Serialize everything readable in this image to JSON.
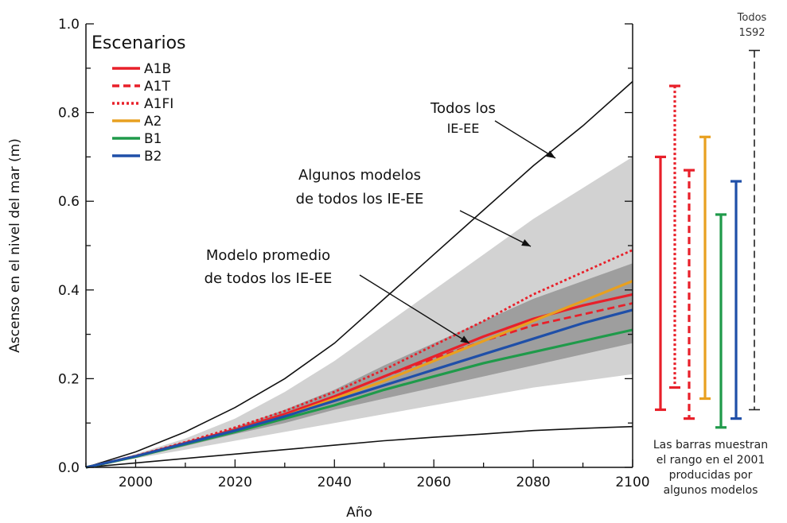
{
  "chart_data": {
    "type": "line",
    "xlabel": "Año",
    "ylabel": "Ascenso en el nivel del mar (m)",
    "xlim": [
      1990,
      2100
    ],
    "ylim": [
      0,
      1.0
    ],
    "xticks": [
      "2000",
      "2020",
      "2040",
      "2060",
      "2080",
      "2100"
    ],
    "yticks": [
      "0.0",
      "0.2",
      "0.4",
      "0.6",
      "0.8",
      "1.0"
    ],
    "legend": {
      "title": "Escenarios",
      "placement": "top-left",
      "entries": [
        {
          "name": "A1B",
          "color": "#e8202a",
          "dash": "solid"
        },
        {
          "name": "A1T",
          "color": "#e8202a",
          "dash": "dashed"
        },
        {
          "name": "A1FI",
          "color": "#e8202a",
          "dash": "dotted"
        },
        {
          "name": "A2",
          "color": "#e8a020",
          "dash": "solid"
        },
        {
          "name": "B1",
          "color": "#1f9a4a",
          "dash": "solid"
        },
        {
          "name": "B2",
          "color": "#1f4fa8",
          "dash": "solid"
        }
      ]
    },
    "envelopes": {
      "all_models_upper": [
        [
          1990,
          0
        ],
        [
          2000,
          0.035
        ],
        [
          2010,
          0.08
        ],
        [
          2020,
          0.135
        ],
        [
          2030,
          0.2
        ],
        [
          2040,
          0.28
        ],
        [
          2050,
          0.38
        ],
        [
          2060,
          0.48
        ],
        [
          2070,
          0.58
        ],
        [
          2080,
          0.68
        ],
        [
          2090,
          0.77
        ],
        [
          2100,
          0.87
        ]
      ],
      "all_models_lower": [
        [
          1990,
          0
        ],
        [
          2000,
          0.01
        ],
        [
          2010,
          0.02
        ],
        [
          2020,
          0.03
        ],
        [
          2030,
          0.04
        ],
        [
          2040,
          0.05
        ],
        [
          2050,
          0.06
        ],
        [
          2060,
          0.068
        ],
        [
          2070,
          0.075
        ],
        [
          2080,
          0.083
        ],
        [
          2090,
          0.088
        ],
        [
          2100,
          0.092
        ]
      ],
      "some_models_upper": [
        [
          1990,
          0
        ],
        [
          2000,
          0.03
        ],
        [
          2010,
          0.065
        ],
        [
          2020,
          0.11
        ],
        [
          2030,
          0.17
        ],
        [
          2040,
          0.24
        ],
        [
          2050,
          0.32
        ],
        [
          2060,
          0.4
        ],
        [
          2070,
          0.48
        ],
        [
          2080,
          0.56
        ],
        [
          2090,
          0.63
        ],
        [
          2100,
          0.7
        ]
      ],
      "some_models_lower": [
        [
          1990,
          0
        ],
        [
          2000,
          0.02
        ],
        [
          2010,
          0.04
        ],
        [
          2020,
          0.06
        ],
        [
          2030,
          0.08
        ],
        [
          2040,
          0.1
        ],
        [
          2050,
          0.12
        ],
        [
          2060,
          0.14
        ],
        [
          2070,
          0.16
        ],
        [
          2080,
          0.18
        ],
        [
          2090,
          0.195
        ],
        [
          2100,
          0.21
        ]
      ],
      "mean_models_upper": [
        [
          1990,
          0
        ],
        [
          2000,
          0.025
        ],
        [
          2010,
          0.055
        ],
        [
          2020,
          0.09
        ],
        [
          2030,
          0.13
        ],
        [
          2040,
          0.175
        ],
        [
          2050,
          0.23
        ],
        [
          2060,
          0.28
        ],
        [
          2070,
          0.33
        ],
        [
          2080,
          0.38
        ],
        [
          2090,
          0.42
        ],
        [
          2100,
          0.46
        ]
      ],
      "mean_models_lower": [
        [
          1990,
          0
        ],
        [
          2000,
          0.022
        ],
        [
          2010,
          0.048
        ],
        [
          2020,
          0.075
        ],
        [
          2030,
          0.1
        ],
        [
          2040,
          0.13
        ],
        [
          2050,
          0.155
        ],
        [
          2060,
          0.18
        ],
        [
          2070,
          0.205
        ],
        [
          2080,
          0.23
        ],
        [
          2090,
          0.255
        ],
        [
          2100,
          0.28
        ]
      ]
    },
    "series": [
      {
        "name": "A1B",
        "color": "#e8202a",
        "dash": "solid",
        "points": [
          [
            1990,
            0
          ],
          [
            2000,
            0.025
          ],
          [
            2010,
            0.055
          ],
          [
            2020,
            0.085
          ],
          [
            2030,
            0.12
          ],
          [
            2040,
            0.16
          ],
          [
            2050,
            0.205
          ],
          [
            2060,
            0.25
          ],
          [
            2070,
            0.295
          ],
          [
            2080,
            0.335
          ],
          [
            2090,
            0.365
          ],
          [
            2100,
            0.39
          ]
        ]
      },
      {
        "name": "A1T",
        "color": "#e8202a",
        "dash": "dashed",
        "points": [
          [
            1990,
            0
          ],
          [
            2000,
            0.025
          ],
          [
            2010,
            0.055
          ],
          [
            2020,
            0.085
          ],
          [
            2030,
            0.12
          ],
          [
            2040,
            0.16
          ],
          [
            2050,
            0.205
          ],
          [
            2060,
            0.245
          ],
          [
            2070,
            0.285
          ],
          [
            2080,
            0.32
          ],
          [
            2090,
            0.345
          ],
          [
            2100,
            0.37
          ]
        ]
      },
      {
        "name": "A1FI",
        "color": "#e8202a",
        "dash": "dotted",
        "points": [
          [
            1990,
            0
          ],
          [
            2000,
            0.026
          ],
          [
            2010,
            0.057
          ],
          [
            2020,
            0.09
          ],
          [
            2030,
            0.127
          ],
          [
            2040,
            0.17
          ],
          [
            2050,
            0.22
          ],
          [
            2060,
            0.275
          ],
          [
            2070,
            0.33
          ],
          [
            2080,
            0.39
          ],
          [
            2090,
            0.44
          ],
          [
            2100,
            0.49
          ]
        ]
      },
      {
        "name": "A2",
        "color": "#e8a020",
        "dash": "solid",
        "points": [
          [
            1990,
            0
          ],
          [
            2000,
            0.024
          ],
          [
            2010,
            0.053
          ],
          [
            2020,
            0.083
          ],
          [
            2030,
            0.115
          ],
          [
            2040,
            0.155
          ],
          [
            2050,
            0.195
          ],
          [
            2060,
            0.24
          ],
          [
            2070,
            0.285
          ],
          [
            2080,
            0.33
          ],
          [
            2090,
            0.375
          ],
          [
            2100,
            0.42
          ]
        ]
      },
      {
        "name": "B1",
        "color": "#1f9a4a",
        "dash": "solid",
        "points": [
          [
            1990,
            0
          ],
          [
            2000,
            0.024
          ],
          [
            2010,
            0.052
          ],
          [
            2020,
            0.08
          ],
          [
            2030,
            0.11
          ],
          [
            2040,
            0.14
          ],
          [
            2050,
            0.175
          ],
          [
            2060,
            0.205
          ],
          [
            2070,
            0.235
          ],
          [
            2080,
            0.26
          ],
          [
            2090,
            0.285
          ],
          [
            2100,
            0.31
          ]
        ]
      },
      {
        "name": "B2",
        "color": "#1f4fa8",
        "dash": "solid",
        "points": [
          [
            1990,
            0
          ],
          [
            2000,
            0.025
          ],
          [
            2010,
            0.054
          ],
          [
            2020,
            0.083
          ],
          [
            2030,
            0.115
          ],
          [
            2040,
            0.15
          ],
          [
            2050,
            0.185
          ],
          [
            2060,
            0.22
          ],
          [
            2070,
            0.255
          ],
          [
            2080,
            0.29
          ],
          [
            2090,
            0.325
          ],
          [
            2100,
            0.355
          ]
        ]
      }
    ],
    "range_bars": [
      {
        "name": "A1B",
        "color": "#e8202a",
        "dash": "solid",
        "low": 0.13,
        "high": 0.7
      },
      {
        "name": "A1FI",
        "color": "#e8202a",
        "dash": "dotted",
        "low": 0.18,
        "high": 0.86
      },
      {
        "name": "A1T",
        "color": "#e8202a",
        "dash": "dashed",
        "low": 0.11,
        "high": 0.67
      },
      {
        "name": "A2",
        "color": "#e8a020",
        "dash": "solid",
        "low": 0.155,
        "high": 0.745
      },
      {
        "name": "B1",
        "color": "#1f9a4a",
        "dash": "solid",
        "low": 0.09,
        "high": 0.57
      },
      {
        "name": "B2",
        "color": "#1f4fa8",
        "dash": "solid",
        "low": 0.11,
        "high": 0.645
      },
      {
        "name": "Todos 1S92",
        "color": "#222222",
        "dash": "dashed",
        "low": 0.13,
        "high": 0.94
      }
    ],
    "annotations": {
      "all_models": [
        "Todos los",
        "IE-EE"
      ],
      "some_models": [
        "Algunos modelos",
        "de todos los IE-EE"
      ],
      "mean_models": [
        "Modelo promedio",
        "de todos los IE-EE"
      ],
      "todos_1s92": [
        "Todos",
        "1S92"
      ]
    },
    "colors": {
      "band_light": "#d2d2d2",
      "band_dark": "#9e9e9e",
      "axis": "#111111"
    }
  },
  "note": [
    "Las barras muestran",
    "el rango en el 2001",
    "producidas por",
    "algunos modelos"
  ]
}
